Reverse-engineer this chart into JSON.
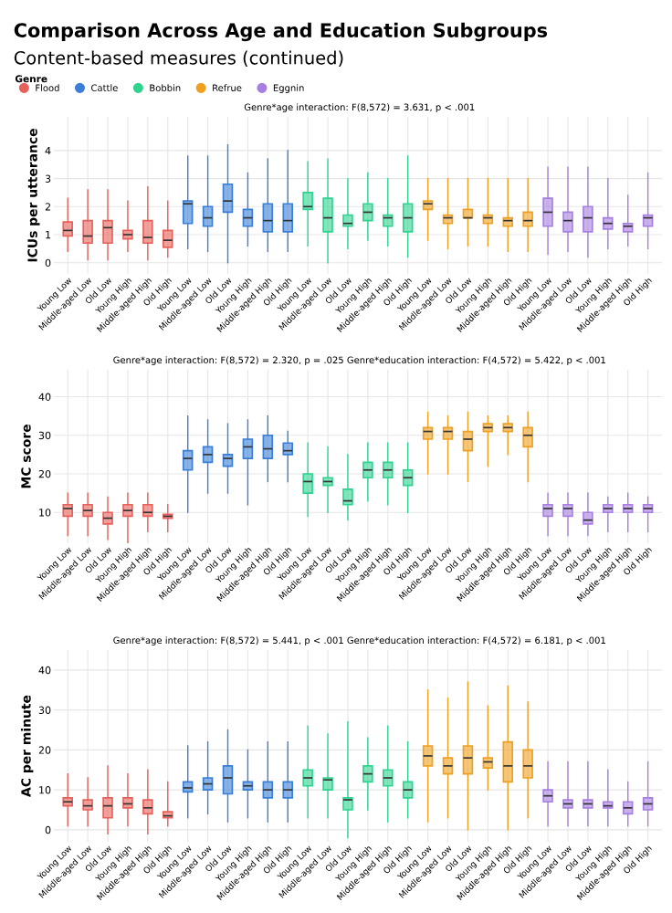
{
  "chart_data": [
    {
      "type": "box",
      "title": "Comparison Across Age and Education Subgroups",
      "subtitle": "Content-based measures (continued)",
      "legend_title": "Genre",
      "legend": "top left",
      "ylabel": "ICUs per utterance",
      "annotations": [
        "Genre*age interaction: F(8,572) = 3.631, p < .001"
      ],
      "grid": true,
      "ylim": [
        -0.4,
        5.2
      ],
      "yticks": [
        0,
        1,
        2,
        3,
        4
      ],
      "categories": [
        "Young Low",
        "Middle-aged Low",
        "Old Low",
        "Young High",
        "Middle-aged High",
        "Old High",
        "Young Low",
        "Middle-aged Low",
        "Old Low",
        "Young High",
        "Middle-aged High",
        "Old High",
        "Young Low",
        "Middle-aged Low",
        "Old Low",
        "Young High",
        "Middle-aged High",
        "Old High",
        "Young Low",
        "Middle-aged Low",
        "Old Low",
        "Young High",
        "Middle-aged High",
        "Old High",
        "Young Low",
        "Middle-aged Low",
        "Old Low",
        "Young High",
        "Middle-aged High",
        "Old High"
      ],
      "series": [
        {
          "name": "Flood",
          "color": "#e8605a",
          "boxes": [
            {
              "low": 0.4,
              "q1": 0.95,
              "median": 1.15,
              "q3": 1.45,
              "high": 2.3
            },
            {
              "low": 0.1,
              "q1": 0.7,
              "median": 0.95,
              "q3": 1.5,
              "high": 2.6
            },
            {
              "low": 0.1,
              "q1": 0.7,
              "median": 1.25,
              "q3": 1.5,
              "high": 2.6
            },
            {
              "low": 0.4,
              "q1": 0.85,
              "median": 1.0,
              "q3": 1.15,
              "high": 2.2
            },
            {
              "low": 0.1,
              "q1": 0.7,
              "median": 0.9,
              "q3": 1.5,
              "high": 2.7
            },
            {
              "low": 0.2,
              "q1": 0.55,
              "median": 0.8,
              "q3": 1.15,
              "high": 2.2
            },
            null,
            null,
            null,
            null,
            null,
            null,
            null,
            null,
            null,
            null,
            null,
            null,
            null,
            null,
            null,
            null,
            null,
            null,
            null,
            null,
            null,
            null,
            null,
            null
          ]
        },
        {
          "name": "Cattle",
          "color": "#3a7fd5",
          "boxes": [
            null,
            null,
            null,
            null,
            null,
            null,
            {
              "low": 0.5,
              "q1": 1.4,
              "median": 2.1,
              "q3": 2.2,
              "high": 3.8
            },
            {
              "low": 0.4,
              "q1": 1.3,
              "median": 1.6,
              "q3": 2.0,
              "high": 3.8
            },
            {
              "low": 0.0,
              "q1": 1.8,
              "median": 2.2,
              "q3": 2.8,
              "high": 4.2
            },
            {
              "low": 0.6,
              "q1": 1.3,
              "median": 1.6,
              "q3": 1.9,
              "high": 3.2
            },
            {
              "low": 0.4,
              "q1": 1.1,
              "median": 1.5,
              "q3": 2.1,
              "high": 3.7
            },
            {
              "low": 0.4,
              "q1": 1.1,
              "median": 1.5,
              "q3": 2.1,
              "high": 4.0
            },
            null,
            null,
            null,
            null,
            null,
            null,
            null,
            null,
            null,
            null,
            null,
            null,
            null,
            null,
            null,
            null,
            null,
            null
          ]
        },
        {
          "name": "Bobbin",
          "color": "#2fd38f",
          "boxes": [
            null,
            null,
            null,
            null,
            null,
            null,
            null,
            null,
            null,
            null,
            null,
            null,
            {
              "low": 0.6,
              "q1": 1.9,
              "median": 2.0,
              "q3": 2.5,
              "high": 3.6
            },
            {
              "low": 0.0,
              "q1": 1.1,
              "median": 1.6,
              "q3": 2.3,
              "high": 3.7
            },
            {
              "low": 0.5,
              "q1": 1.3,
              "median": 1.4,
              "q3": 1.7,
              "high": 3.0
            },
            {
              "low": 0.8,
              "q1": 1.5,
              "median": 1.8,
              "q3": 2.1,
              "high": 3.2
            },
            {
              "low": 0.6,
              "q1": 1.3,
              "median": 1.6,
              "q3": 1.7,
              "high": 3.0
            },
            {
              "low": 0.2,
              "q1": 1.1,
              "median": 1.6,
              "q3": 2.1,
              "high": 3.8
            },
            null,
            null,
            null,
            null,
            null,
            null,
            null,
            null,
            null,
            null,
            null,
            null
          ]
        },
        {
          "name": "Refrue",
          "color": "#f0a020",
          "boxes": [
            null,
            null,
            null,
            null,
            null,
            null,
            null,
            null,
            null,
            null,
            null,
            null,
            null,
            null,
            null,
            null,
            null,
            null,
            {
              "low": 0.8,
              "q1": 1.9,
              "median": 2.1,
              "q3": 2.2,
              "high": 3.0
            },
            {
              "low": 0.5,
              "q1": 1.4,
              "median": 1.6,
              "q3": 1.7,
              "high": 3.0
            },
            {
              "low": 0.6,
              "q1": 1.6,
              "median": 1.6,
              "q3": 1.9,
              "high": 3.0
            },
            {
              "low": 0.6,
              "q1": 1.4,
              "median": 1.6,
              "q3": 1.7,
              "high": 3.0
            },
            {
              "low": 0.4,
              "q1": 1.3,
              "median": 1.5,
              "q3": 1.6,
              "high": 3.0
            },
            {
              "low": 0.4,
              "q1": 1.3,
              "median": 1.5,
              "q3": 1.8,
              "high": 3.0
            },
            null,
            null,
            null,
            null,
            null,
            null
          ]
        },
        {
          "name": "Eggnin",
          "color": "#a77fe0",
          "boxes": [
            null,
            null,
            null,
            null,
            null,
            null,
            null,
            null,
            null,
            null,
            null,
            null,
            null,
            null,
            null,
            null,
            null,
            null,
            null,
            null,
            null,
            null,
            null,
            null,
            {
              "low": 0.3,
              "q1": 1.3,
              "median": 1.8,
              "q3": 2.3,
              "high": 3.4
            },
            {
              "low": 0.4,
              "q1": 1.1,
              "median": 1.5,
              "q3": 1.8,
              "high": 3.4
            },
            {
              "low": 0.2,
              "q1": 1.1,
              "median": 1.6,
              "q3": 2.0,
              "high": 3.4
            },
            {
              "low": 0.5,
              "q1": 1.2,
              "median": 1.4,
              "q3": 1.6,
              "high": 3.0
            },
            {
              "low": 0.6,
              "q1": 1.1,
              "median": 1.3,
              "q3": 1.4,
              "high": 2.4
            },
            {
              "low": 0.5,
              "q1": 1.3,
              "median": 1.6,
              "q3": 1.7,
              "high": 3.2
            }
          ]
        }
      ]
    },
    {
      "type": "box",
      "ylabel": "MC score",
      "annotations": [
        "Genre*age interaction: F(8,572) = 2.320, p = .025 Genre*education interaction: F(4,572) = 5.422, p < .001"
      ],
      "grid": true,
      "ylim": [
        2,
        47
      ],
      "yticks": [
        10,
        20,
        30,
        40
      ],
      "categories": [
        "Young Low",
        "Middle-aged Low",
        "Old Low",
        "Young High",
        "Middle-aged High",
        "Old High",
        "Young Low",
        "Middle-aged Low",
        "Old Low",
        "Young High",
        "Middle-aged High",
        "Old High",
        "Young Low",
        "Middle-aged Low",
        "Old Low",
        "Young High",
        "Middle-aged High",
        "Old High",
        "Young Low",
        "Middle-aged Low",
        "Old Low",
        "Young High",
        "Middle-aged High",
        "Old High",
        "Young Low",
        "Middle-aged Low",
        "Old Low",
        "Young High",
        "Middle-aged High",
        "Old High"
      ],
      "series": [
        {
          "color": "#e8605a",
          "boxes": [
            {
              "low": 4,
              "q1": 9,
              "median": 11,
              "q3": 12,
              "high": 15
            },
            {
              "low": 4,
              "q1": 9,
              "median": 10.5,
              "q3": 12,
              "high": 15
            },
            {
              "low": 3,
              "q1": 7,
              "median": 8.5,
              "q3": 10,
              "high": 14
            },
            {
              "low": 2,
              "q1": 9,
              "median": 10.5,
              "q3": 12,
              "high": 15
            },
            {
              "low": 5,
              "q1": 9,
              "median": 10,
              "q3": 12,
              "high": 15
            },
            {
              "low": 5,
              "q1": 8.5,
              "median": 9,
              "q3": 9.5,
              "high": 12
            },
            null,
            null,
            null,
            null,
            null,
            null,
            null,
            null,
            null,
            null,
            null,
            null,
            null,
            null,
            null,
            null,
            null,
            null,
            null,
            null,
            null,
            null,
            null,
            null
          ]
        },
        {
          "color": "#3a7fd5",
          "boxes": [
            null,
            null,
            null,
            null,
            null,
            null,
            {
              "low": 10,
              "q1": 21,
              "median": 24,
              "q3": 26,
              "high": 35
            },
            {
              "low": 15,
              "q1": 23,
              "median": 25,
              "q3": 27,
              "high": 34
            },
            {
              "low": 15,
              "q1": 22,
              "median": 24,
              "q3": 25,
              "high": 33
            },
            {
              "low": 12,
              "q1": 24,
              "median": 27,
              "q3": 29,
              "high": 34
            },
            {
              "low": 18,
              "q1": 24,
              "median": 26.5,
              "q3": 30,
              "high": 35
            },
            {
              "low": 18,
              "q1": 25,
              "median": 26,
              "q3": 28,
              "high": 31
            },
            null,
            null,
            null,
            null,
            null,
            null,
            null,
            null,
            null,
            null,
            null,
            null,
            null,
            null,
            null,
            null,
            null,
            null
          ]
        },
        {
          "color": "#2fd38f",
          "boxes": [
            null,
            null,
            null,
            null,
            null,
            null,
            null,
            null,
            null,
            null,
            null,
            null,
            {
              "low": 9,
              "q1": 15,
              "median": 18,
              "q3": 20,
              "high": 28
            },
            {
              "low": 10,
              "q1": 17,
              "median": 18,
              "q3": 19,
              "high": 27
            },
            {
              "low": 8,
              "q1": 12,
              "median": 13,
              "q3": 16,
              "high": 25
            },
            {
              "low": 13,
              "q1": 19,
              "median": 21,
              "q3": 23,
              "high": 28
            },
            {
              "low": 12,
              "q1": 19,
              "median": 21,
              "q3": 23,
              "high": 28
            },
            {
              "low": 10,
              "q1": 17,
              "median": 19,
              "q3": 21,
              "high": 28
            },
            null,
            null,
            null,
            null,
            null,
            null,
            null,
            null,
            null,
            null,
            null,
            null
          ]
        },
        {
          "color": "#f0a020",
          "boxes": [
            null,
            null,
            null,
            null,
            null,
            null,
            null,
            null,
            null,
            null,
            null,
            null,
            null,
            null,
            null,
            null,
            null,
            null,
            {
              "low": 20,
              "q1": 29,
              "median": 31,
              "q3": 32,
              "high": 36
            },
            {
              "low": 20,
              "q1": 29,
              "median": 31,
              "q3": 32,
              "high": 35
            },
            {
              "low": 18,
              "q1": 26,
              "median": 29,
              "q3": 31,
              "high": 36
            },
            {
              "low": 22,
              "q1": 31,
              "median": 32,
              "q3": 33,
              "high": 35
            },
            {
              "low": 25,
              "q1": 31,
              "median": 32,
              "q3": 33,
              "high": 35
            },
            {
              "low": 18,
              "q1": 27,
              "median": 30,
              "q3": 32,
              "high": 36
            },
            null,
            null,
            null,
            null,
            null,
            null
          ]
        },
        {
          "color": "#a77fe0",
          "boxes": [
            null,
            null,
            null,
            null,
            null,
            null,
            null,
            null,
            null,
            null,
            null,
            null,
            null,
            null,
            null,
            null,
            null,
            null,
            null,
            null,
            null,
            null,
            null,
            null,
            {
              "low": 4,
              "q1": 9,
              "median": 11,
              "q3": 12,
              "high": 15
            },
            {
              "low": 4,
              "q1": 9,
              "median": 11,
              "q3": 12,
              "high": 15
            },
            {
              "low": 4,
              "q1": 7,
              "median": 8,
              "q3": 10,
              "high": 15
            },
            {
              "low": 5,
              "q1": 10,
              "median": 11,
              "q3": 12,
              "high": 14
            },
            {
              "low": 5,
              "q1": 10,
              "median": 11,
              "q3": 12,
              "high": 15
            },
            {
              "low": 5,
              "q1": 10,
              "median": 11,
              "q3": 12,
              "high": 14
            }
          ]
        }
      ]
    },
    {
      "type": "box",
      "ylabel": "AC per minute",
      "annotations": [
        "Genre*age interaction: F(8,572) = 5.441, p < .001 Genre*education interaction: F(4,572) = 6.181, p < .001"
      ],
      "grid": true,
      "ylim": [
        -3,
        45
      ],
      "yticks": [
        0,
        10,
        20,
        30,
        40
      ],
      "categories": [
        "Young Low",
        "Middle-aged Low",
        "Old Low",
        "Young High",
        "Middle-aged High",
        "Old High",
        "Young Low",
        "Middle-aged Low",
        "Old Low",
        "Young High",
        "Middle-aged High",
        "Old High",
        "Young Low",
        "Middle-aged Low",
        "Old Low",
        "Young High",
        "Middle-aged High",
        "Old High",
        "Young Low",
        "Middle-aged Low",
        "Old Low",
        "Young High",
        "Middle-aged High",
        "Old High",
        "Young Low",
        "Middle-aged Low",
        "Old Low",
        "Young High",
        "Middle-aged High",
        "Old High"
      ],
      "series": [
        {
          "color": "#e8605a",
          "boxes": [
            {
              "low": 1,
              "q1": 6,
              "median": 7,
              "q3": 8,
              "high": 14
            },
            {
              "low": 1,
              "q1": 5,
              "median": 6,
              "q3": 7.5,
              "high": 13
            },
            {
              "low": -1,
              "q1": 3,
              "median": 6,
              "q3": 8,
              "high": 16
            },
            {
              "low": 1,
              "q1": 5.5,
              "median": 6.5,
              "q3": 8,
              "high": 14
            },
            {
              "low": -1,
              "q1": 4,
              "median": 5.5,
              "q3": 7.5,
              "high": 15
            },
            {
              "low": 1,
              "q1": 3,
              "median": 3.5,
              "q3": 4.5,
              "high": 12
            },
            null,
            null,
            null,
            null,
            null,
            null,
            null,
            null,
            null,
            null,
            null,
            null,
            null,
            null,
            null,
            null,
            null,
            null,
            null,
            null,
            null,
            null,
            null,
            null
          ]
        },
        {
          "color": "#3a7fd5",
          "boxes": [
            null,
            null,
            null,
            null,
            null,
            null,
            {
              "low": 3,
              "q1": 9.5,
              "median": 10.5,
              "q3": 12,
              "high": 21
            },
            {
              "low": 4,
              "q1": 10,
              "median": 11.5,
              "q3": 13,
              "high": 22
            },
            {
              "low": 2,
              "q1": 9,
              "median": 13,
              "q3": 16,
              "high": 25
            },
            {
              "low": 3,
              "q1": 10,
              "median": 11,
              "q3": 12,
              "high": 20
            },
            {
              "low": 2,
              "q1": 8,
              "median": 10,
              "q3": 12,
              "high": 22
            },
            {
              "low": 2,
              "q1": 8,
              "median": 10,
              "q3": 12,
              "high": 22
            },
            null,
            null,
            null,
            null,
            null,
            null,
            null,
            null,
            null,
            null,
            null,
            null,
            null,
            null,
            null,
            null,
            null,
            null
          ]
        },
        {
          "color": "#2fd38f",
          "boxes": [
            null,
            null,
            null,
            null,
            null,
            null,
            null,
            null,
            null,
            null,
            null,
            null,
            {
              "low": 3,
              "q1": 11,
              "median": 13,
              "q3": 15,
              "high": 26
            },
            {
              "low": 3,
              "q1": 10,
              "median": 12.5,
              "q3": 13,
              "high": 24
            },
            {
              "low": -2,
              "q1": 5,
              "median": 7.5,
              "q3": 8,
              "high": 27
            },
            {
              "low": 5,
              "q1": 12,
              "median": 14,
              "q3": 16,
              "high": 23
            },
            {
              "low": 2,
              "q1": 11,
              "median": 13,
              "q3": 15,
              "high": 26
            },
            {
              "low": 3,
              "q1": 8,
              "median": 10,
              "q3": 12,
              "high": 22
            },
            null,
            null,
            null,
            null,
            null,
            null,
            null,
            null,
            null,
            null,
            null,
            null
          ]
        },
        {
          "color": "#f0a020",
          "boxes": [
            null,
            null,
            null,
            null,
            null,
            null,
            null,
            null,
            null,
            null,
            null,
            null,
            null,
            null,
            null,
            null,
            null,
            null,
            {
              "low": 2,
              "q1": 16,
              "median": 18.5,
              "q3": 21,
              "high": 35
            },
            {
              "low": 3,
              "q1": 14,
              "median": 16,
              "q3": 18,
              "high": 33
            },
            {
              "low": 0,
              "q1": 14,
              "median": 18,
              "q3": 21,
              "high": 37
            },
            {
              "low": 10,
              "q1": 15.5,
              "median": 17,
              "q3": 18,
              "high": 31
            },
            {
              "low": 0,
              "q1": 12,
              "median": 16,
              "q3": 22,
              "high": 36
            },
            {
              "low": 3,
              "q1": 13,
              "median": 16,
              "q3": 20,
              "high": 32
            },
            null,
            null,
            null,
            null,
            null,
            null
          ]
        },
        {
          "color": "#a77fe0",
          "boxes": [
            null,
            null,
            null,
            null,
            null,
            null,
            null,
            null,
            null,
            null,
            null,
            null,
            null,
            null,
            null,
            null,
            null,
            null,
            null,
            null,
            null,
            null,
            null,
            null,
            {
              "low": 1,
              "q1": 7,
              "median": 8.5,
              "q3": 10,
              "high": 17
            },
            {
              "low": 1,
              "q1": 5.5,
              "median": 6.5,
              "q3": 7.5,
              "high": 17
            },
            {
              "low": 1,
              "q1": 5.5,
              "median": 6.5,
              "q3": 7.5,
              "high": 17
            },
            {
              "low": 1,
              "q1": 5.5,
              "median": 6,
              "q3": 7,
              "high": 15
            },
            {
              "low": 1,
              "q1": 4,
              "median": 5.5,
              "q3": 7,
              "high": 12
            },
            {
              "low": 1,
              "q1": 5,
              "median": 6.5,
              "q3": 8,
              "high": 17
            }
          ]
        }
      ]
    }
  ]
}
